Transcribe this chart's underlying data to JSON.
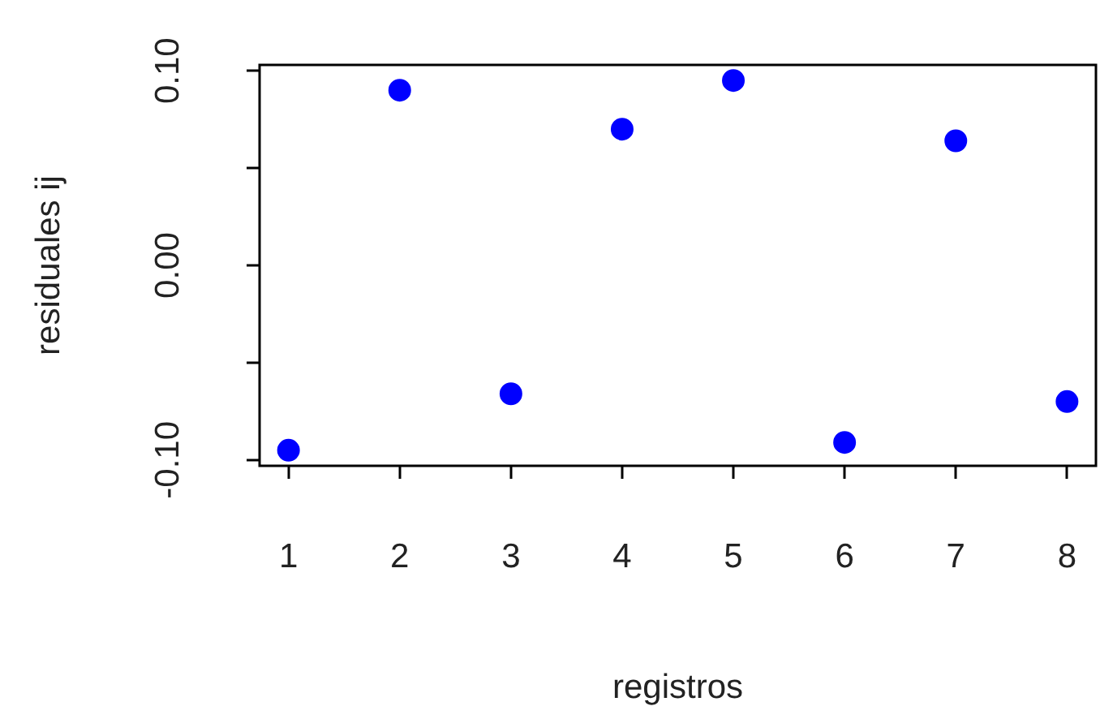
{
  "chart_data": {
    "type": "scatter",
    "xlabel": "registros",
    "ylabel": "residuales ij",
    "x": [
      1,
      2,
      3,
      4,
      5,
      6,
      7,
      8
    ],
    "values": [
      -0.095,
      0.09,
      -0.066,
      0.07,
      0.095,
      -0.091,
      0.064,
      -0.07
    ],
    "color": "#0000ff",
    "marker": "circle",
    "xlim": [
      0.74,
      8.26
    ],
    "xticks": [
      1,
      2,
      3,
      4,
      5,
      6,
      7,
      8
    ],
    "ylim": [
      -0.103,
      0.103
    ],
    "yticks": [
      {
        "value": -0.1,
        "label": "-0.10"
      },
      {
        "value": -0.05,
        "label": null
      },
      {
        "value": 0,
        "label": "0.00"
      },
      {
        "value": 0.05,
        "label": null
      },
      {
        "value": 0.1,
        "label": "0.10"
      }
    ],
    "grid": false,
    "legend": false
  }
}
